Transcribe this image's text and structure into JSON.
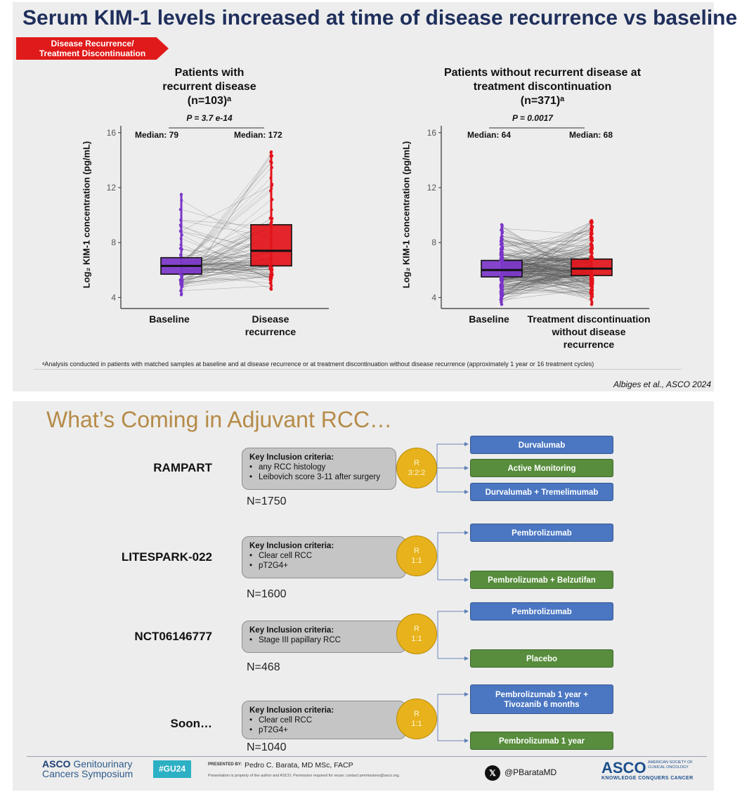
{
  "slide1": {
    "title": "Serum KIM-1 levels increased at time of disease recurrence vs baseline",
    "ribbon": {
      "line1": "Disease Recurrence/",
      "line2": "Treatment Discontinuation"
    },
    "footnote": "ᵃAnalysis conducted in patients with matched samples at baseline and at disease recurrence or at treatment discontinuation without disease recurrence (approximately 1 year or 16 treatment cycles)",
    "citation": "Albiges et al., ASCO 2024",
    "ylabel": "Log₂ KIM-1 concentration (pg/mL)",
    "colors": {
      "purple": "#7b35c9",
      "red": "#e3131a",
      "line": "#555555"
    }
  },
  "chart_data": [
    {
      "type": "box",
      "title_lines": [
        "Patients with",
        "recurrent disease",
        "(n=103)ᵃ"
      ],
      "p_value": "P = 3.7 e-14",
      "ylabel": "Log₂ KIM-1 concentration (pg/mL)",
      "ylim": [
        3.2,
        16.5
      ],
      "yticks": [
        4,
        8,
        12,
        16
      ],
      "categories": [
        "Baseline",
        "Disease recurrence"
      ],
      "median_labels": [
        "Median: 79",
        "Median: 172"
      ],
      "boxes": [
        {
          "q1": 5.7,
          "median": 6.3,
          "q3": 6.9,
          "min": 4.2,
          "max": 11.5
        },
        {
          "q1": 6.3,
          "median": 7.4,
          "q3": 9.3,
          "min": 4.6,
          "max": 14.6
        }
      ]
    },
    {
      "type": "box",
      "title_lines": [
        "Patients without recurrent disease at",
        "treatment discontinuation",
        "(n=371)ᵃ"
      ],
      "p_value": "P = 0.0017",
      "ylabel": "Log₂ KIM-1 concentration (pg/mL)",
      "ylim": [
        3.2,
        16.5
      ],
      "yticks": [
        4,
        8,
        12,
        16
      ],
      "categories": [
        "Baseline",
        "Treatment discontinuation without disease recurrence"
      ],
      "median_labels": [
        "Median: 64",
        "Median: 68"
      ],
      "boxes": [
        {
          "q1": 5.5,
          "median": 6.0,
          "q3": 6.7,
          "min": 3.5,
          "max": 9.3
        },
        {
          "q1": 5.6,
          "median": 6.1,
          "q3": 6.8,
          "min": 3.5,
          "max": 9.6
        }
      ]
    }
  ],
  "slide2": {
    "title": "What’s Coming in Adjuvant RCC…",
    "crit_header": "Key Inclusion criteria:",
    "trials": [
      {
        "name": "RAMPART",
        "criteria": [
          "any RCC histology",
          "Leibovich score 3-11 after surgery"
        ],
        "rand1": "R",
        "rand2": "3:2:2",
        "n": "N=1750",
        "arms": [
          {
            "label": "Durvalumab",
            "color": "blue"
          },
          {
            "label": "Active Monitoring",
            "color": "green"
          },
          {
            "label": "Durvalumab + Tremelimumab",
            "color": "blue"
          }
        ]
      },
      {
        "name": "LITESPARK-022",
        "criteria": [
          "Clear cell RCC",
          "pT2G4+"
        ],
        "rand1": "R",
        "rand2": "1:1",
        "n": "N=1600",
        "arms": [
          {
            "label": "Pembrolizumab",
            "color": "blue"
          },
          {
            "label": "Pembrolizumab + Belzutifan",
            "color": "green"
          }
        ]
      },
      {
        "name": "NCT06146777",
        "criteria": [
          "Stage III papillary RCC"
        ],
        "rand1": "R",
        "rand2": "1:1",
        "n": "N=468",
        "arms": [
          {
            "label": "Pembrolizumab",
            "color": "blue"
          },
          {
            "label": "Placebo",
            "color": "green"
          }
        ]
      },
      {
        "name": "Soon…",
        "criteria": [
          "Clear cell RCC",
          "pT2G4+"
        ],
        "rand1": "R",
        "rand2": "1:1",
        "n": "N=1040",
        "arms": [
          {
            "label_line1": "Pembrolizumab 1 year +",
            "label_line2": "Tivozanib 6 months",
            "color": "blue"
          },
          {
            "label": "Pembrolizumab 1 year",
            "color": "green"
          }
        ]
      }
    ],
    "footer": {
      "asco_gu_line1_a": "ASCO",
      "asco_gu_line1_b": "Genitourinary",
      "asco_gu_line2": "Cancers Symposium",
      "hashtag": "#GU24",
      "presented_by": "PRESENTED BY:",
      "presenter": "Pedro C. Barata, MD MSc, FACP",
      "disclaimer": "Presentation is property of the author and ASCO. Permission required for reuse; contact permissions@asco.org.",
      "x_glyph": "𝕏",
      "handle": "@PBarataMD",
      "asco_logo": "ASCO",
      "asco_sub1": "AMERICAN SOCIETY OF",
      "asco_sub2": "CLINICAL ONCOLOGY",
      "asco_tag": "KNOWLEDGE CONQUERS CANCER"
    }
  }
}
